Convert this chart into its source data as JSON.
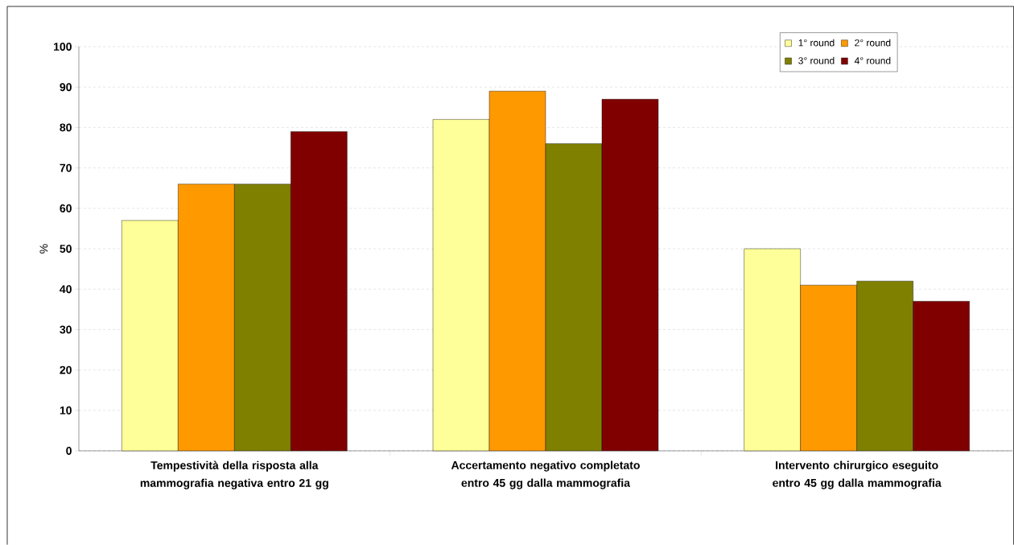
{
  "chart_data": {
    "type": "bar",
    "ylabel": "%",
    "categories": [
      "Tempestività della risposta alla mammografia negativa entro 21 gg",
      "Accertamento negativo completato entro 45 gg dalla mammografia",
      "Intervento chirurgico eseguito entro 45 gg dalla mammografia"
    ],
    "series": [
      {
        "name": "1° round",
        "color": "#ffff99",
        "values": [
          57,
          82,
          50
        ]
      },
      {
        "name": "2° round",
        "color": "#ff9900",
        "values": [
          66,
          89,
          41
        ]
      },
      {
        "name": "3° round",
        "color": "#808000",
        "values": [
          66,
          76,
          42
        ]
      },
      {
        "name": "4° round",
        "color": "#800000",
        "values": [
          79,
          87,
          37
        ]
      }
    ],
    "ylim": [
      0,
      100
    ],
    "yticks": [
      0,
      10,
      20,
      30,
      40,
      50,
      60,
      70,
      80,
      90,
      100
    ],
    "grid": "y",
    "legend": "top right"
  }
}
